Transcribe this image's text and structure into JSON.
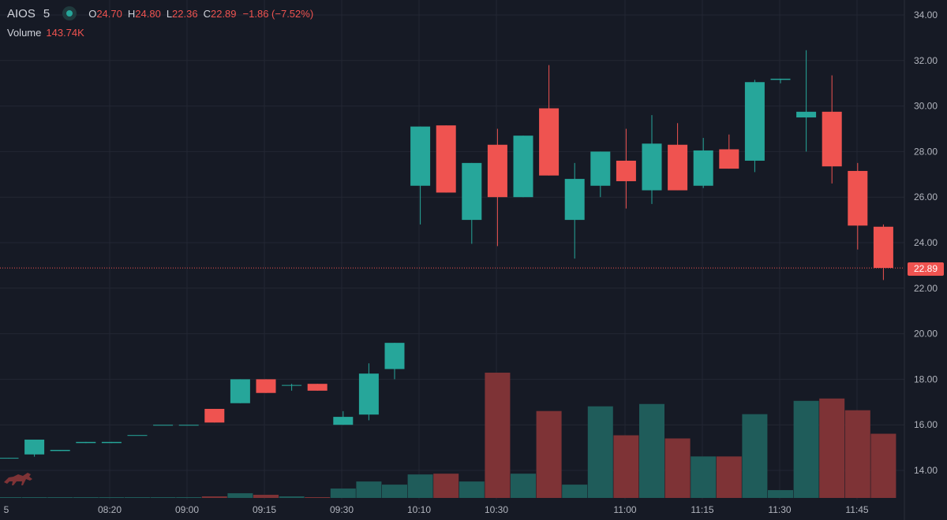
{
  "legend": {
    "symbol": "AIOS",
    "interval": "5",
    "open_label": "O",
    "open": "24.70",
    "high_label": "H",
    "high": "24.80",
    "low_label": "L",
    "low": "22.36",
    "close_label": "C",
    "close": "22.89",
    "change": "−1.86 (−7.52%)",
    "volume_label": "Volume",
    "volume": "143.74K"
  },
  "last_price_label": "22.89",
  "colors": {
    "up": "#26a69a",
    "down": "#ef5350",
    "volume_up": "#1f5c5a",
    "volume_down": "#7e3336",
    "background": "#161a25",
    "grid": "#232733"
  },
  "logo_icon": "bull-icon",
  "chart_data": {
    "type": "candlestick",
    "y_axis": {
      "ticks": [
        "34.00",
        "32.00",
        "30.00",
        "28.00",
        "26.00",
        "24.00",
        "22.00",
        "20.00",
        "18.00",
        "16.00",
        "14.00"
      ],
      "range": [
        12.9,
        34.4
      ]
    },
    "x_axis": {
      "tick_labels": [
        "5",
        "08:20",
        "09:00",
        "09:15",
        "09:30",
        "10:10",
        "10:30",
        "11:00",
        "11:15",
        "11:30",
        "11:45"
      ]
    },
    "candles": [
      {
        "open": 14.52,
        "high": 14.55,
        "low": 14.52,
        "close": 14.55
      },
      {
        "open": 14.7,
        "high": 15.35,
        "low": 14.6,
        "close": 15.35
      },
      {
        "open": 14.85,
        "high": 14.9,
        "low": 14.85,
        "close": 14.9
      },
      {
        "open": 15.2,
        "high": 15.25,
        "low": 15.2,
        "close": 15.25
      },
      {
        "open": 15.2,
        "high": 15.25,
        "low": 15.2,
        "close": 15.25
      },
      {
        "open": 15.55,
        "high": 15.55,
        "low": 15.55,
        "close": 15.55
      },
      {
        "open": 16.0,
        "high": 16.0,
        "low": 16.0,
        "close": 16.0
      },
      {
        "open": 16.0,
        "high": 16.0,
        "low": 16.0,
        "close": 16.0
      },
      {
        "open": 16.7,
        "high": 16.7,
        "low": 16.1,
        "close": 16.1
      },
      {
        "open": 16.95,
        "high": 18.0,
        "low": 16.95,
        "close": 18.0
      },
      {
        "open": 18.0,
        "high": 18.0,
        "low": 17.4,
        "close": 17.4
      },
      {
        "open": 17.75,
        "high": 17.8,
        "low": 17.5,
        "close": 17.75
      },
      {
        "open": 17.8,
        "high": 17.8,
        "low": 17.5,
        "close": 17.5
      },
      {
        "open": 16.0,
        "high": 16.6,
        "low": 16.0,
        "close": 16.35
      },
      {
        "open": 16.45,
        "high": 18.7,
        "low": 16.2,
        "close": 18.25
      },
      {
        "open": 18.45,
        "high": 19.6,
        "low": 18.0,
        "close": 19.6
      },
      {
        "open": 26.5,
        "high": 29.1,
        "low": 24.8,
        "close": 29.1
      },
      {
        "open": 29.15,
        "high": 29.15,
        "low": 26.2,
        "close": 26.2
      },
      {
        "open": 25.0,
        "high": 27.5,
        "low": 23.95,
        "close": 27.5
      },
      {
        "open": 28.3,
        "high": 29.0,
        "low": 23.85,
        "close": 26.0
      },
      {
        "open": 26.0,
        "high": 28.7,
        "low": 26.0,
        "close": 28.7
      },
      {
        "open": 29.9,
        "high": 31.8,
        "low": 26.95,
        "close": 26.95
      },
      {
        "open": 25.0,
        "high": 27.5,
        "low": 23.3,
        "close": 26.8
      },
      {
        "open": 26.5,
        "high": 28.0,
        "low": 26.0,
        "close": 28.0
      },
      {
        "open": 27.6,
        "high": 29.0,
        "low": 25.5,
        "close": 26.7
      },
      {
        "open": 26.3,
        "high": 29.6,
        "low": 25.7,
        "close": 28.35
      },
      {
        "open": 28.3,
        "high": 29.25,
        "low": 26.3,
        "close": 26.3
      },
      {
        "open": 26.5,
        "high": 28.6,
        "low": 26.4,
        "close": 28.05
      },
      {
        "open": 28.1,
        "high": 28.75,
        "low": 27.25,
        "close": 27.25
      },
      {
        "open": 27.6,
        "high": 31.15,
        "low": 27.1,
        "close": 31.05
      },
      {
        "open": 31.15,
        "high": 31.2,
        "low": 31.0,
        "close": 31.2
      },
      {
        "open": 29.5,
        "high": 32.45,
        "low": 28.0,
        "close": 29.75
      },
      {
        "open": 29.75,
        "high": 31.35,
        "low": 26.6,
        "close": 27.35
      },
      {
        "open": 27.15,
        "high": 27.5,
        "low": 23.7,
        "close": 24.75
      },
      {
        "open": 24.7,
        "high": 24.8,
        "low": 22.36,
        "close": 22.89
      }
    ],
    "volume": [
      1,
      1,
      1,
      1,
      1,
      1,
      1,
      1,
      2,
      6,
      4,
      2,
      1,
      12,
      21,
      17,
      30,
      31,
      21,
      160,
      31,
      111,
      17,
      117,
      80,
      120,
      76,
      53,
      53,
      107,
      10,
      124,
      127,
      112,
      82
    ],
    "volume_max": 160
  }
}
